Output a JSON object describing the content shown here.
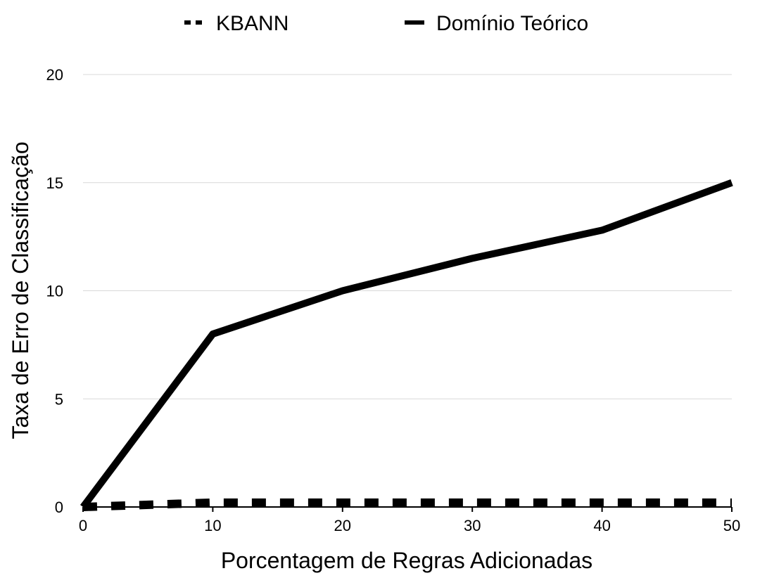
{
  "chart_data": {
    "type": "line",
    "xlabel": "Porcentagem de Regras Adicionadas",
    "ylabel": "Taxa de Erro de Classificação",
    "xlim": [
      0,
      50
    ],
    "ylim": [
      0,
      20
    ],
    "x_ticks": [
      "0",
      "10",
      "20",
      "30",
      "40",
      "50"
    ],
    "y_ticks": [
      "0",
      "5",
      "10",
      "15",
      "20"
    ],
    "grid": "horizontal",
    "legend_position": "top",
    "series": [
      {
        "name": "KBANN",
        "style": "dashed",
        "color": "#000000",
        "x": [
          0,
          10,
          20,
          30,
          40,
          50
        ],
        "y": [
          0,
          0.2,
          0.2,
          0.2,
          0.2,
          0.2
        ]
      },
      {
        "name": "Domínio Teórico",
        "style": "solid",
        "color": "#000000",
        "x": [
          0,
          10,
          20,
          30,
          40,
          50
        ],
        "y": [
          0,
          8,
          10,
          11.5,
          12.8,
          15
        ]
      }
    ]
  }
}
